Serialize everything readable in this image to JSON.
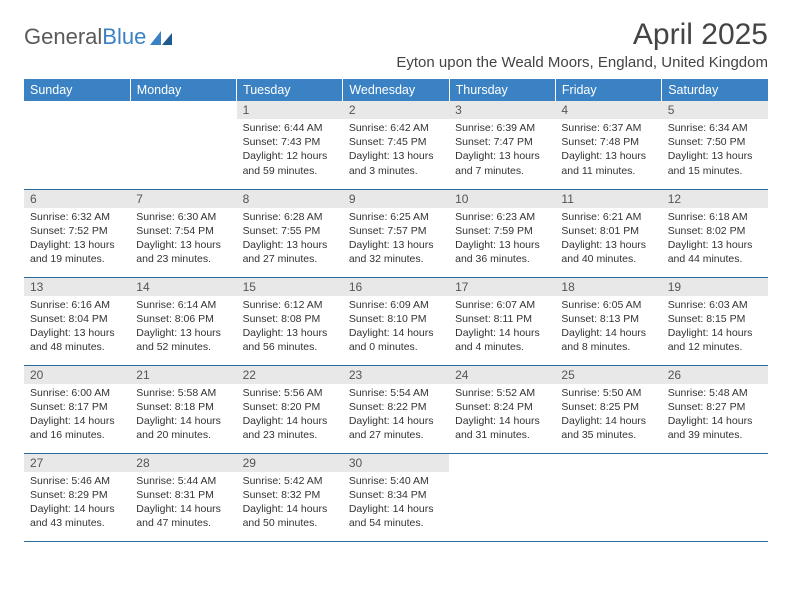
{
  "brand": {
    "part1": "General",
    "part2": "Blue"
  },
  "title": "April 2025",
  "location": "Eyton upon the Weald Moors, England, United Kingdom",
  "colors": {
    "header_bg": "#3b82c4",
    "header_fg": "#ffffff",
    "daynum_bg": "#e8e8e8",
    "row_border": "#2e6da4",
    "text": "#333333"
  },
  "weekday_labels": [
    "Sunday",
    "Monday",
    "Tuesday",
    "Wednesday",
    "Thursday",
    "Friday",
    "Saturday"
  ],
  "weeks": [
    [
      null,
      null,
      {
        "n": "1",
        "sr": "Sunrise: 6:44 AM",
        "ss": "Sunset: 7:43 PM",
        "d1": "Daylight: 12 hours",
        "d2": "and 59 minutes."
      },
      {
        "n": "2",
        "sr": "Sunrise: 6:42 AM",
        "ss": "Sunset: 7:45 PM",
        "d1": "Daylight: 13 hours",
        "d2": "and 3 minutes."
      },
      {
        "n": "3",
        "sr": "Sunrise: 6:39 AM",
        "ss": "Sunset: 7:47 PM",
        "d1": "Daylight: 13 hours",
        "d2": "and 7 minutes."
      },
      {
        "n": "4",
        "sr": "Sunrise: 6:37 AM",
        "ss": "Sunset: 7:48 PM",
        "d1": "Daylight: 13 hours",
        "d2": "and 11 minutes."
      },
      {
        "n": "5",
        "sr": "Sunrise: 6:34 AM",
        "ss": "Sunset: 7:50 PM",
        "d1": "Daylight: 13 hours",
        "d2": "and 15 minutes."
      }
    ],
    [
      {
        "n": "6",
        "sr": "Sunrise: 6:32 AM",
        "ss": "Sunset: 7:52 PM",
        "d1": "Daylight: 13 hours",
        "d2": "and 19 minutes."
      },
      {
        "n": "7",
        "sr": "Sunrise: 6:30 AM",
        "ss": "Sunset: 7:54 PM",
        "d1": "Daylight: 13 hours",
        "d2": "and 23 minutes."
      },
      {
        "n": "8",
        "sr": "Sunrise: 6:28 AM",
        "ss": "Sunset: 7:55 PM",
        "d1": "Daylight: 13 hours",
        "d2": "and 27 minutes."
      },
      {
        "n": "9",
        "sr": "Sunrise: 6:25 AM",
        "ss": "Sunset: 7:57 PM",
        "d1": "Daylight: 13 hours",
        "d2": "and 32 minutes."
      },
      {
        "n": "10",
        "sr": "Sunrise: 6:23 AM",
        "ss": "Sunset: 7:59 PM",
        "d1": "Daylight: 13 hours",
        "d2": "and 36 minutes."
      },
      {
        "n": "11",
        "sr": "Sunrise: 6:21 AM",
        "ss": "Sunset: 8:01 PM",
        "d1": "Daylight: 13 hours",
        "d2": "and 40 minutes."
      },
      {
        "n": "12",
        "sr": "Sunrise: 6:18 AM",
        "ss": "Sunset: 8:02 PM",
        "d1": "Daylight: 13 hours",
        "d2": "and 44 minutes."
      }
    ],
    [
      {
        "n": "13",
        "sr": "Sunrise: 6:16 AM",
        "ss": "Sunset: 8:04 PM",
        "d1": "Daylight: 13 hours",
        "d2": "and 48 minutes."
      },
      {
        "n": "14",
        "sr": "Sunrise: 6:14 AM",
        "ss": "Sunset: 8:06 PM",
        "d1": "Daylight: 13 hours",
        "d2": "and 52 minutes."
      },
      {
        "n": "15",
        "sr": "Sunrise: 6:12 AM",
        "ss": "Sunset: 8:08 PM",
        "d1": "Daylight: 13 hours",
        "d2": "and 56 minutes."
      },
      {
        "n": "16",
        "sr": "Sunrise: 6:09 AM",
        "ss": "Sunset: 8:10 PM",
        "d1": "Daylight: 14 hours",
        "d2": "and 0 minutes."
      },
      {
        "n": "17",
        "sr": "Sunrise: 6:07 AM",
        "ss": "Sunset: 8:11 PM",
        "d1": "Daylight: 14 hours",
        "d2": "and 4 minutes."
      },
      {
        "n": "18",
        "sr": "Sunrise: 6:05 AM",
        "ss": "Sunset: 8:13 PM",
        "d1": "Daylight: 14 hours",
        "d2": "and 8 minutes."
      },
      {
        "n": "19",
        "sr": "Sunrise: 6:03 AM",
        "ss": "Sunset: 8:15 PM",
        "d1": "Daylight: 14 hours",
        "d2": "and 12 minutes."
      }
    ],
    [
      {
        "n": "20",
        "sr": "Sunrise: 6:00 AM",
        "ss": "Sunset: 8:17 PM",
        "d1": "Daylight: 14 hours",
        "d2": "and 16 minutes."
      },
      {
        "n": "21",
        "sr": "Sunrise: 5:58 AM",
        "ss": "Sunset: 8:18 PM",
        "d1": "Daylight: 14 hours",
        "d2": "and 20 minutes."
      },
      {
        "n": "22",
        "sr": "Sunrise: 5:56 AM",
        "ss": "Sunset: 8:20 PM",
        "d1": "Daylight: 14 hours",
        "d2": "and 23 minutes."
      },
      {
        "n": "23",
        "sr": "Sunrise: 5:54 AM",
        "ss": "Sunset: 8:22 PM",
        "d1": "Daylight: 14 hours",
        "d2": "and 27 minutes."
      },
      {
        "n": "24",
        "sr": "Sunrise: 5:52 AM",
        "ss": "Sunset: 8:24 PM",
        "d1": "Daylight: 14 hours",
        "d2": "and 31 minutes."
      },
      {
        "n": "25",
        "sr": "Sunrise: 5:50 AM",
        "ss": "Sunset: 8:25 PM",
        "d1": "Daylight: 14 hours",
        "d2": "and 35 minutes."
      },
      {
        "n": "26",
        "sr": "Sunrise: 5:48 AM",
        "ss": "Sunset: 8:27 PM",
        "d1": "Daylight: 14 hours",
        "d2": "and 39 minutes."
      }
    ],
    [
      {
        "n": "27",
        "sr": "Sunrise: 5:46 AM",
        "ss": "Sunset: 8:29 PM",
        "d1": "Daylight: 14 hours",
        "d2": "and 43 minutes."
      },
      {
        "n": "28",
        "sr": "Sunrise: 5:44 AM",
        "ss": "Sunset: 8:31 PM",
        "d1": "Daylight: 14 hours",
        "d2": "and 47 minutes."
      },
      {
        "n": "29",
        "sr": "Sunrise: 5:42 AM",
        "ss": "Sunset: 8:32 PM",
        "d1": "Daylight: 14 hours",
        "d2": "and 50 minutes."
      },
      {
        "n": "30",
        "sr": "Sunrise: 5:40 AM",
        "ss": "Sunset: 8:34 PM",
        "d1": "Daylight: 14 hours",
        "d2": "and 54 minutes."
      },
      null,
      null,
      null
    ]
  ]
}
